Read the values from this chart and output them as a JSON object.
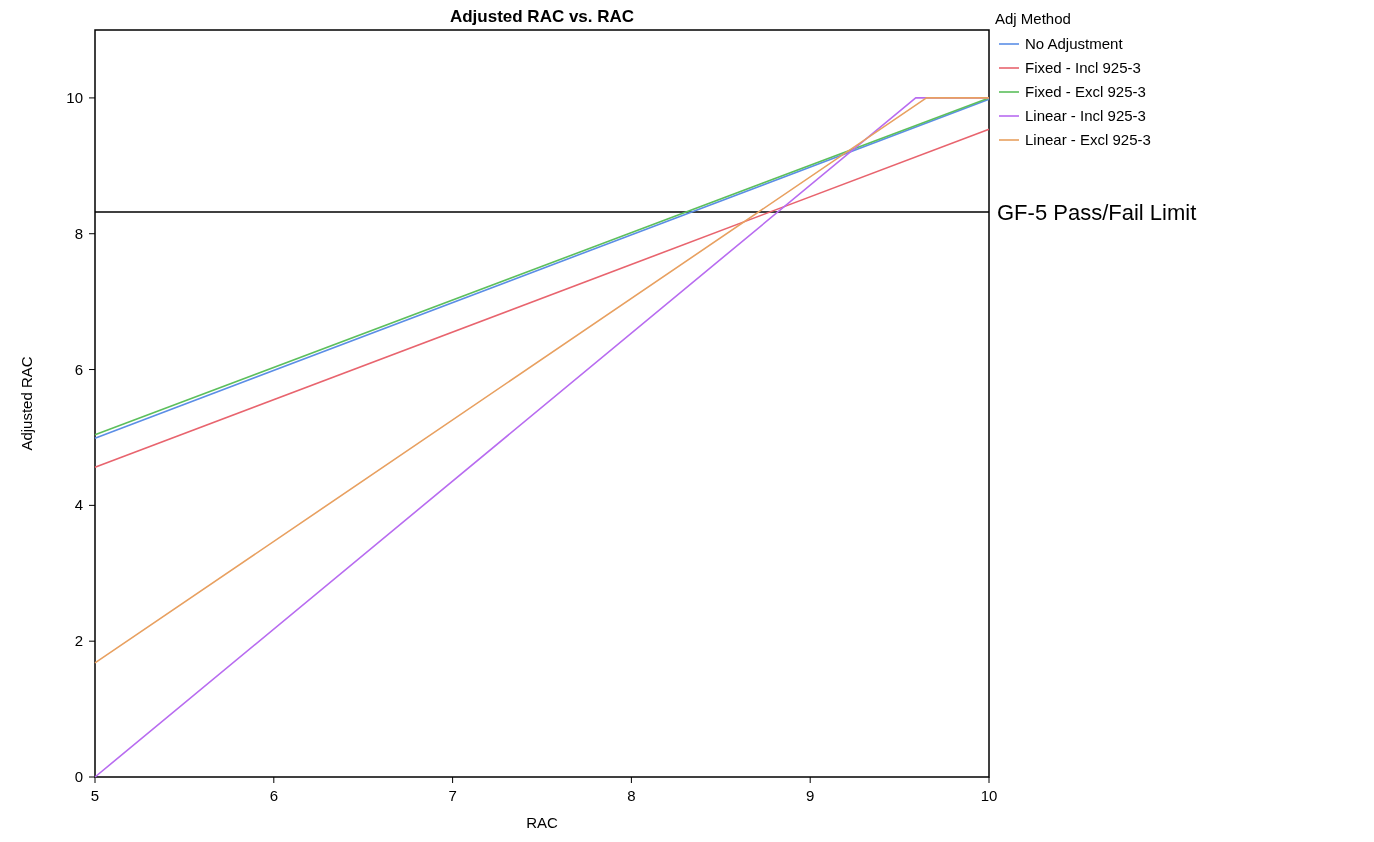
{
  "chart_data": {
    "type": "line",
    "title": "Adjusted RAC vs. RAC",
    "xlabel": "RAC",
    "ylabel": "Adjusted RAC",
    "legend_title": "Adj Method",
    "legend": "top right",
    "grid": false,
    "marker": "none",
    "line_style": "solid",
    "xlim": [
      5,
      10
    ],
    "ylim": [
      0,
      11
    ],
    "xticks": [
      5,
      6,
      7,
      8,
      9,
      10
    ],
    "yticks": [
      0,
      2,
      4,
      6,
      8,
      10
    ],
    "series": [
      {
        "name": "No Adjustment",
        "color": "#5b8ee6",
        "x": [
          5,
          10
        ],
        "values": [
          4.99,
          9.98
        ]
      },
      {
        "name": "Fixed - Incl 925-3",
        "color": "#e8646e",
        "x": [
          5,
          10
        ],
        "values": [
          4.56,
          9.54
        ]
      },
      {
        "name": "Fixed - Excl 925-3",
        "color": "#5cbf5c",
        "x": [
          5,
          10
        ],
        "values": [
          5.04,
          10
        ]
      },
      {
        "name": "Linear - Incl 925-3",
        "color": "#b86cf0",
        "x": [
          5,
          9.59,
          10
        ],
        "values": [
          0,
          10,
          10
        ]
      },
      {
        "name": "Linear - Excl 925-3",
        "color": "#e8a060",
        "x": [
          5,
          9.65,
          10
        ],
        "values": [
          1.68,
          10,
          10
        ]
      }
    ],
    "ref_lines": [
      {
        "axis": "y",
        "value": 8.32,
        "label": "GF-5 Pass/Fail Limit",
        "color": "#000000"
      }
    ]
  }
}
